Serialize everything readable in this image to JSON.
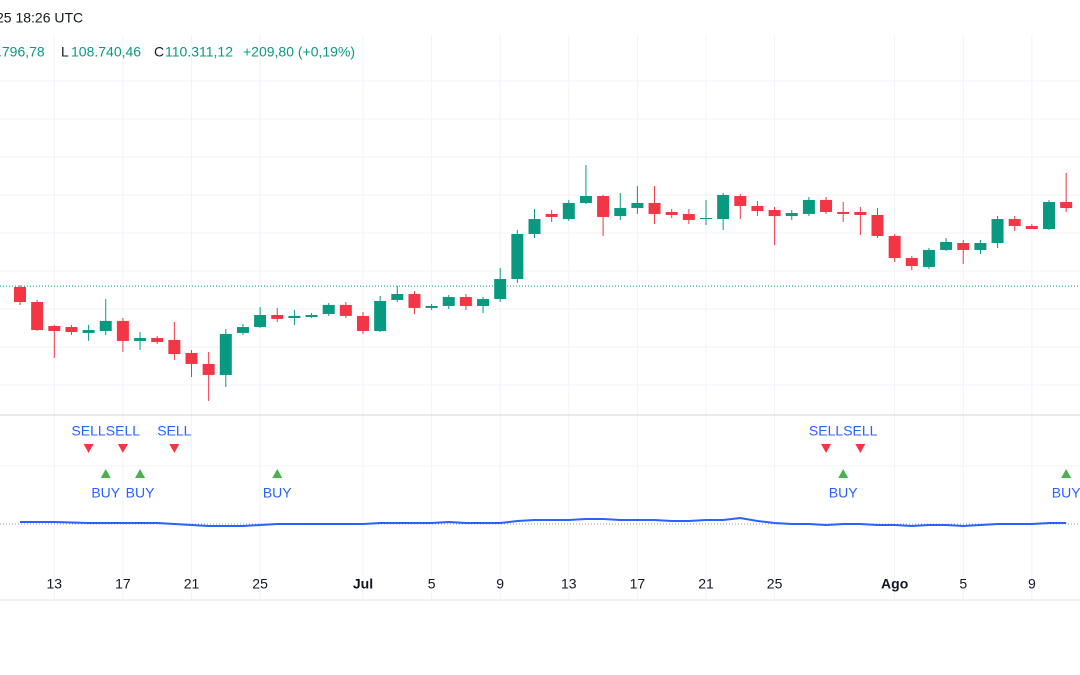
{
  "header": {
    "time": "25 18:26 UTC",
    "high_value": ".796,78",
    "low_label": "L",
    "low_value": "108.740,46",
    "close_label": "C",
    "close_value": "110.311,12",
    "change": "+209,80 (+0,19%)"
  },
  "chart_data": {
    "type": "candlestick",
    "categories": [
      null,
      null,
      "13",
      null,
      null,
      null,
      "17",
      null,
      null,
      null,
      "21",
      null,
      null,
      null,
      "25",
      null,
      null,
      null,
      null,
      null,
      "Jul",
      null,
      null,
      null,
      "5",
      null,
      null,
      null,
      "9",
      null,
      null,
      null,
      "13",
      null,
      null,
      null,
      "17",
      null,
      null,
      null,
      "21",
      null,
      null,
      null,
      "25",
      null,
      null,
      null,
      null,
      null,
      null,
      "Ago",
      null,
      null,
      null,
      "5",
      null,
      null,
      null,
      "9",
      null,
      null
    ],
    "open": [
      110220,
      108620,
      106070,
      105960,
      105330,
      105540,
      106610,
      104480,
      104790,
      104580,
      103200,
      102030,
      100860,
      105330,
      105960,
      107240,
      106920,
      107030,
      107350,
      108310,
      107140,
      105540,
      108840,
      109470,
      107990,
      108200,
      109150,
      108200,
      108940,
      111070,
      115860,
      117990,
      117450,
      119160,
      119900,
      117770,
      118620,
      119160,
      118200,
      117990,
      117450,
      117450,
      119900,
      118840,
      118410,
      117770,
      117990,
      119480,
      118200,
      118200,
      117880,
      115650,
      113300,
      112350,
      114160,
      114900,
      114160,
      114900,
      117450,
      116710,
      116390,
      119260
    ],
    "high": [
      110430,
      108840,
      106180,
      106180,
      106180,
      108940,
      106920,
      105430,
      105010,
      106500,
      103520,
      103310,
      105750,
      106290,
      108090,
      107990,
      107780,
      107450,
      108520,
      108620,
      107560,
      109260,
      110330,
      109790,
      108410,
      109370,
      109470,
      109150,
      112240,
      116280,
      118520,
      118410,
      119480,
      123200,
      120010,
      120220,
      120970,
      120970,
      118520,
      118520,
      119480,
      120220,
      120110,
      119370,
      118730,
      118410,
      119800,
      119800,
      119260,
      118730,
      118620,
      115860,
      113520,
      114370,
      115430,
      115220,
      115220,
      117770,
      117770,
      116920,
      119480,
      122350
    ],
    "low": [
      108310,
      105540,
      102660,
      105110,
      104480,
      105110,
      103310,
      103520,
      104160,
      102450,
      100640,
      98090,
      99580,
      105110,
      105860,
      106500,
      106180,
      106920,
      107140,
      106920,
      105220,
      105430,
      108620,
      107350,
      107780,
      107880,
      107780,
      107450,
      108620,
      110650,
      115430,
      117140,
      117240,
      119050,
      115650,
      117350,
      117990,
      116920,
      117560,
      116920,
      116820,
      116280,
      117450,
      117770,
      114690,
      117350,
      117770,
      117990,
      117140,
      115750,
      115430,
      112880,
      112030,
      112130,
      114050,
      112670,
      113730,
      114370,
      116180,
      116390,
      116280,
      118200
    ],
    "close": [
      108620,
      105640,
      105540,
      105430,
      105640,
      106610,
      104480,
      104790,
      104370,
      103090,
      102030,
      100860,
      105220,
      105960,
      107240,
      106820,
      107140,
      107240,
      108310,
      107140,
      105540,
      108730,
      109470,
      107990,
      108200,
      109150,
      108200,
      108940,
      111070,
      115860,
      117450,
      117670,
      119160,
      119900,
      117670,
      118620,
      119160,
      117990,
      117880,
      117350,
      117560,
      120010,
      118840,
      118300,
      117770,
      118090,
      119480,
      118200,
      117990,
      117880,
      115650,
      113300,
      112450,
      114160,
      115010,
      114160,
      114900,
      117450,
      116710,
      116390,
      119260,
      118620
    ],
    "up_color": "#089981",
    "down_color": "#f23645",
    "ylim": [
      96600,
      137030
    ],
    "price_line": 110311.12,
    "signals": [
      null,
      null,
      null,
      null,
      "SELL",
      "BUY",
      "SELL",
      "BUY",
      null,
      "SELL",
      null,
      null,
      null,
      null,
      null,
      "BUY",
      null,
      null,
      null,
      null,
      null,
      null,
      null,
      null,
      null,
      null,
      null,
      null,
      null,
      null,
      null,
      null,
      null,
      null,
      null,
      null,
      null,
      null,
      null,
      null,
      null,
      null,
      null,
      null,
      null,
      null,
      null,
      "SELL",
      "BUY",
      "SELL",
      null,
      null,
      null,
      null,
      null,
      null,
      null,
      null,
      null,
      null,
      null,
      "BUY"
    ],
    "sell_color": "#f23645",
    "buy_color": "#4caf50",
    "indicator": [
      2,
      2,
      2,
      1.5,
      1,
      1,
      1,
      1,
      1,
      0,
      -1,
      -2,
      -2,
      -2,
      -1,
      0,
      0,
      0,
      0,
      0,
      0,
      1,
      1,
      1,
      1,
      2,
      1,
      1,
      1,
      3,
      4,
      4,
      4,
      5,
      5,
      4,
      4,
      4,
      3,
      3,
      4,
      4,
      6,
      3,
      1,
      0,
      0,
      -1,
      0,
      0,
      -1,
      -1,
      -2,
      -1,
      -1,
      -2,
      -1,
      0,
      0,
      0,
      1,
      1
    ],
    "indicator_lim": [
      -10,
      10
    ],
    "indicator_color": "#2962ff"
  }
}
